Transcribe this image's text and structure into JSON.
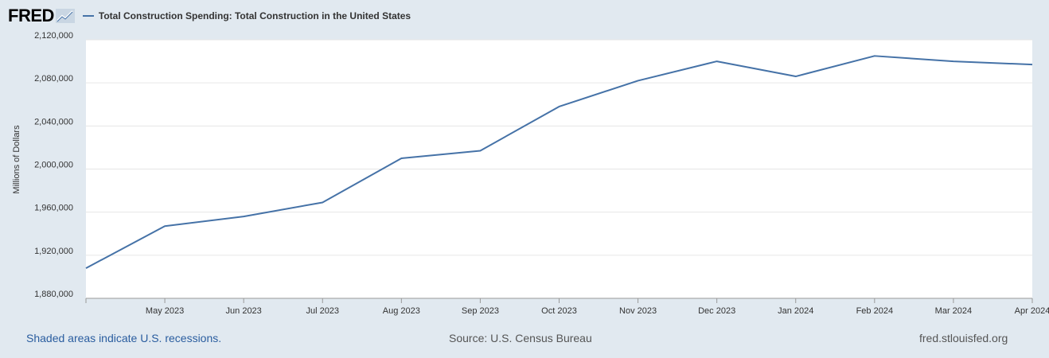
{
  "header": {
    "logo": "FRED",
    "logo_icon": "trend-line-icon"
  },
  "colors": {
    "series": "#4572a7",
    "background": "#e1e9f0",
    "plot_background": "#ffffff",
    "grid": "#e6e6e6"
  },
  "chart_data": {
    "type": "line",
    "title": "",
    "xlabel": "",
    "ylabel": "Millions of Dollars",
    "ylim": [
      1880000,
      2120000
    ],
    "yticks": [
      1880000,
      1920000,
      1960000,
      2000000,
      2040000,
      2080000,
      2120000
    ],
    "ytick_labels": [
      "1,880,000",
      "1,920,000",
      "1,960,000",
      "2,000,000",
      "2,040,000",
      "2,080,000",
      "2,120,000"
    ],
    "x": [
      "2023-04",
      "2023-05",
      "2023-06",
      "2023-07",
      "2023-08",
      "2023-09",
      "2023-10",
      "2023-11",
      "2023-12",
      "2024-01",
      "2024-02",
      "2024-03",
      "2024-04"
    ],
    "xtick_labels": [
      "",
      "May 2023",
      "Jun 2023",
      "Jul 2023",
      "Aug 2023",
      "Sep 2023",
      "Oct 2023",
      "Nov 2023",
      "Dec 2023",
      "Jan 2024",
      "Feb 2024",
      "Mar 2024",
      "Apr 2024"
    ],
    "series": [
      {
        "name": "Total Construction Spending: Total Construction in the United States",
        "values": [
          1908000,
          1947000,
          1956000,
          1969000,
          2010000,
          2017000,
          2058000,
          2082000,
          2100000,
          2086000,
          2105000,
          2100000,
          2097000
        ]
      }
    ],
    "grid": true,
    "legend": "top-left"
  },
  "footer": {
    "recessions_note": "Shaded areas indicate U.S. recessions.",
    "source": "Source: U.S. Census Bureau",
    "site": "fred.stlouisfed.org"
  }
}
